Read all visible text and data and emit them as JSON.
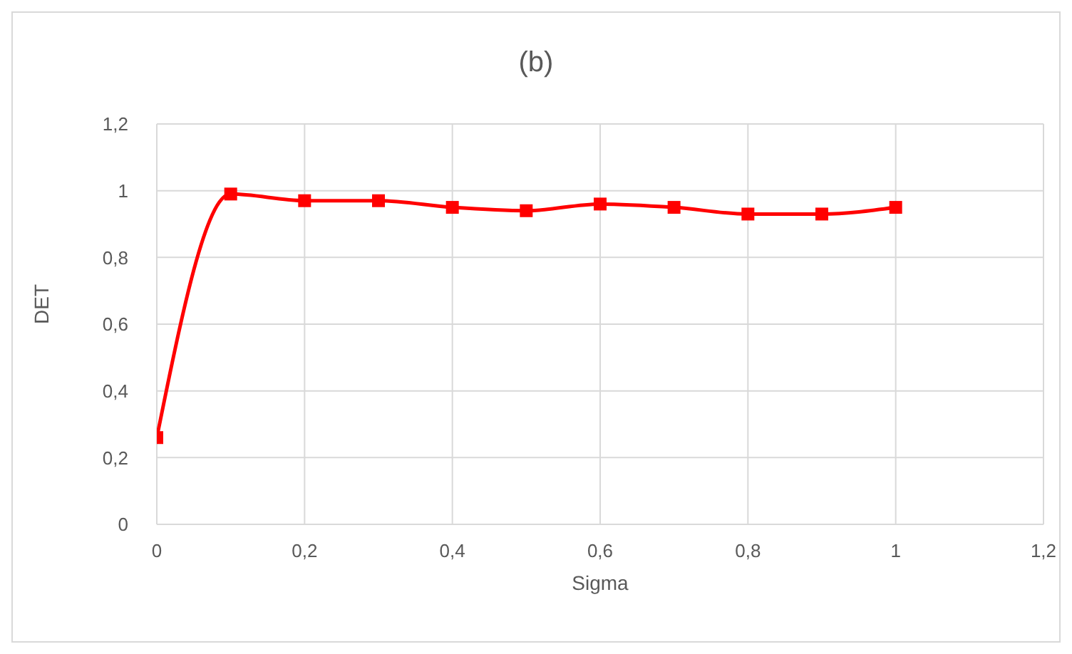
{
  "chart_data": {
    "type": "line",
    "title": "(b)",
    "xlabel": "Sigma",
    "ylabel": "DET",
    "x": [
      0,
      0.1,
      0.2,
      0.3,
      0.4,
      0.5,
      0.6,
      0.7,
      0.8,
      0.9,
      1
    ],
    "series": [
      {
        "color": "#ff0000",
        "values": [
          0.26,
          0.99,
          0.97,
          0.97,
          0.95,
          0.94,
          0.96,
          0.95,
          0.93,
          0.93,
          0.95
        ]
      }
    ],
    "xlim": [
      0,
      1.2
    ],
    "ylim": [
      0,
      1.2
    ],
    "xticks": [
      0,
      {
        "value": 0.2,
        "label": "0,2"
      },
      {
        "value": 0.4,
        "label": "0,4"
      },
      {
        "value": 0.6,
        "label": "0,6"
      },
      {
        "value": 0.8,
        "label": "0,8"
      },
      1,
      {
        "value": 1.2,
        "label": "1,2"
      }
    ],
    "yticks": [
      0,
      {
        "value": 0.2,
        "label": "0,2"
      },
      {
        "value": 0.4,
        "label": "0,4"
      },
      {
        "value": 0.6,
        "label": "0,6"
      },
      {
        "value": 0.8,
        "label": "0,8"
      },
      1,
      {
        "value": 1.2,
        "label": "1,2"
      }
    ],
    "grid": true,
    "legend": false,
    "marker": "square",
    "line_style": "solid"
  }
}
